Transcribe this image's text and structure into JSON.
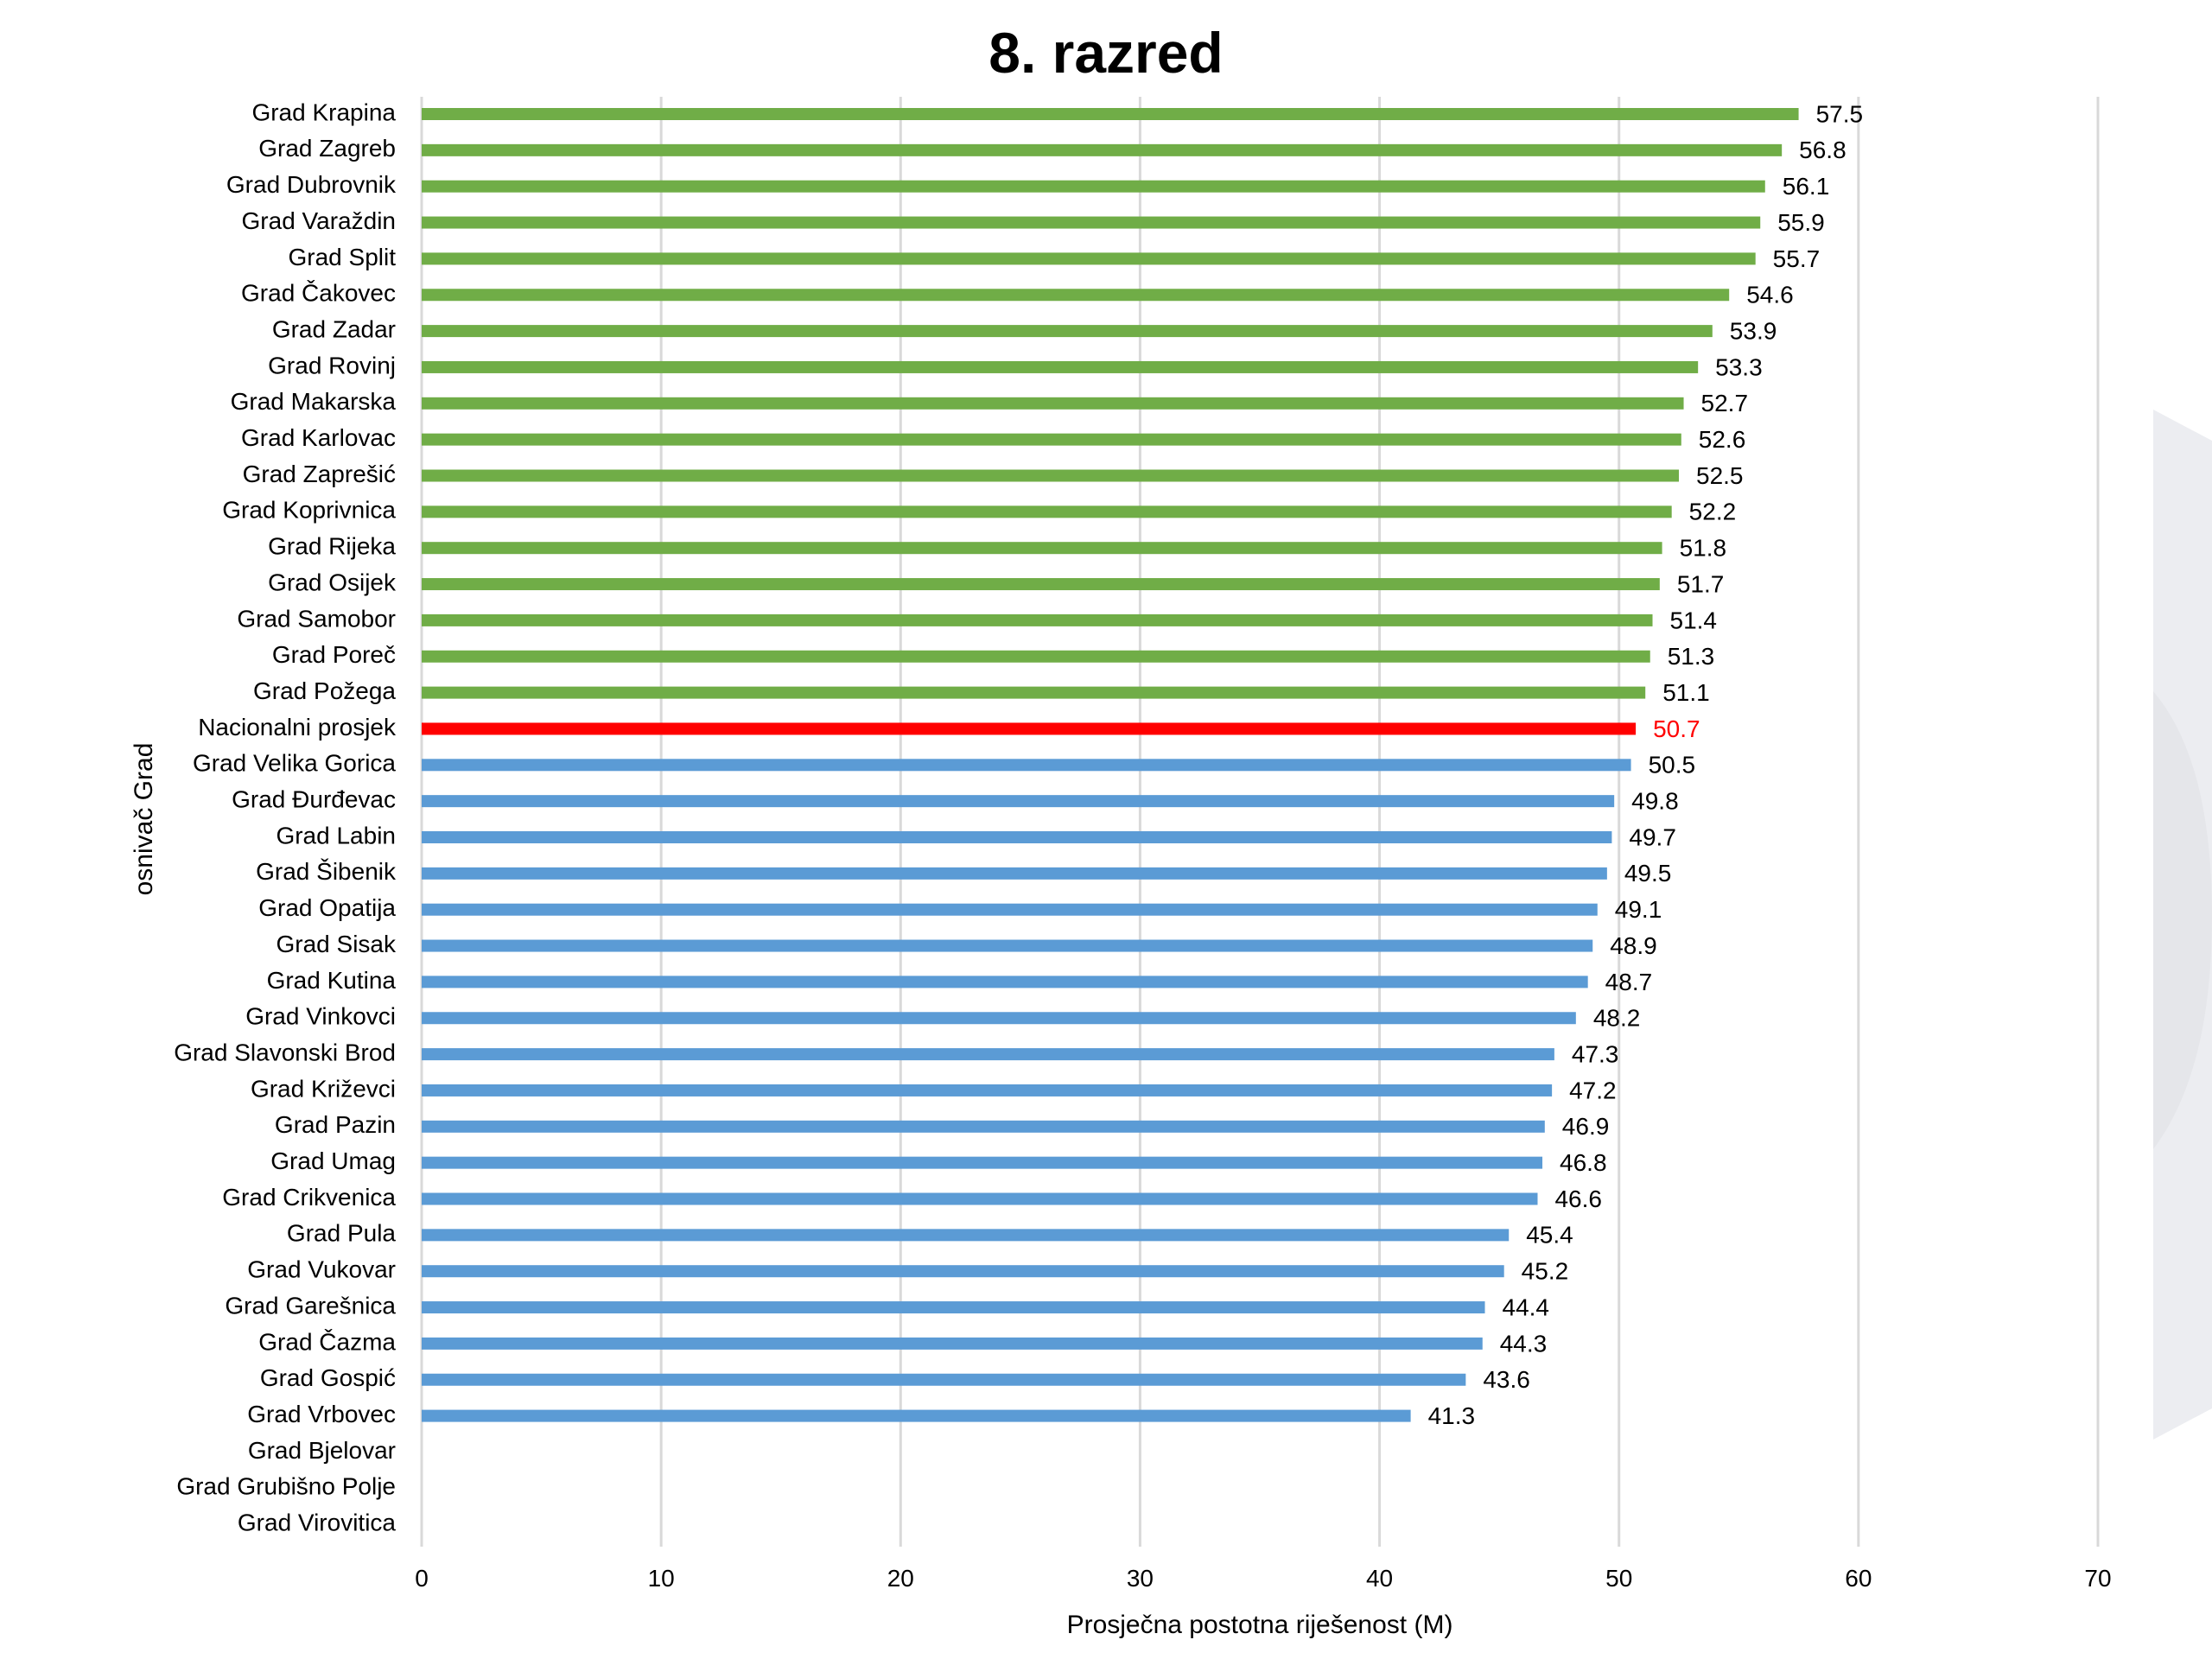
{
  "chart_data": {
    "type": "bar",
    "orientation": "horizontal",
    "title": "8. razred",
    "xlabel": "Prosječna postotna riješenost (M)",
    "ylabel": "osnivač Grad",
    "xlim": [
      0,
      70
    ],
    "xticks": [
      0,
      10,
      20,
      30,
      40,
      50,
      60,
      70
    ],
    "grid": true,
    "colors": {
      "above": "#70ad47",
      "national": "#ff0000",
      "below": "#5b9bd5"
    },
    "categories": [
      "Grad Krapina",
      "Grad Zagreb",
      "Grad Dubrovnik",
      "Grad Varaždin",
      "Grad Split",
      "Grad Čakovec",
      "Grad Zadar",
      "Grad Rovinj",
      "Grad Makarska",
      "Grad Karlovac",
      "Grad Zaprešić",
      "Grad Koprivnica",
      "Grad Rijeka",
      "Grad Osijek",
      "Grad Samobor",
      "Grad Poreč",
      "Grad Požega",
      "Nacionalni prosjek",
      "Grad Velika Gorica",
      "Grad Đurđevac",
      "Grad Labin",
      "Grad Šibenik",
      "Grad Opatija",
      "Grad Sisak",
      "Grad Kutina",
      "Grad Vinkovci",
      "Grad Slavonski Brod",
      "Grad Križevci",
      "Grad Pazin",
      "Grad Umag",
      "Grad Crikvenica",
      "Grad Pula",
      "Grad Vukovar",
      "Grad Garešnica",
      "Grad Čazma",
      "Grad Gospić",
      "Grad Vrbovec",
      "Grad Bjelovar",
      "Grad Grubišno Polje",
      "Grad Virovitica"
    ],
    "values": [
      57.5,
      56.8,
      56.1,
      55.9,
      55.7,
      54.6,
      53.9,
      53.3,
      52.7,
      52.6,
      52.5,
      52.2,
      51.8,
      51.7,
      51.4,
      51.3,
      51.1,
      50.7,
      50.5,
      49.8,
      49.7,
      49.5,
      49.1,
      48.9,
      48.7,
      48.2,
      47.3,
      47.2,
      46.9,
      46.8,
      46.6,
      45.4,
      45.2,
      44.4,
      44.3,
      43.6,
      41.3,
      null,
      null,
      null
    ],
    "value_labels": [
      "57.5",
      "56.8",
      "56.1",
      "55.9",
      "55.7",
      "54.6",
      "53.9",
      "53.3",
      "52.7",
      "52.6",
      "52.5",
      "52.2",
      "51.8",
      "51.7",
      "51.4",
      "51.3",
      "51.1",
      "50.7",
      "50.5",
      "49.8",
      "49.7",
      "49.5",
      "49.1",
      "48.9",
      "48.7",
      "48.2",
      "47.3",
      "47.2",
      "46.9",
      "46.8",
      "46.6",
      "45.4",
      "45.2",
      "44.4",
      "44.3",
      "43.6",
      "41.3",
      "",
      "",
      ""
    ],
    "national_index": 17
  }
}
